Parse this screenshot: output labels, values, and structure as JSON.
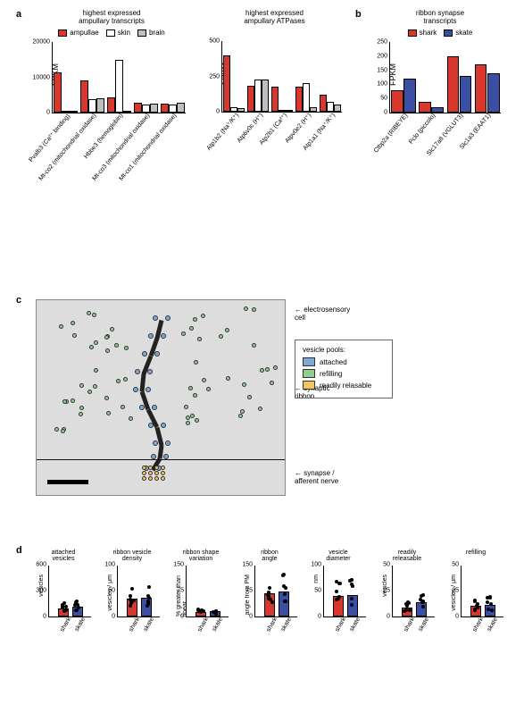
{
  "colors": {
    "shark": "#d9372c",
    "skate": "#3a4fa3",
    "skin": "#ffffff",
    "brain": "#bfbfbf",
    "attached": "#7da7d9",
    "refilling": "#8fcf8f",
    "readily": "#f2c65e",
    "bar_border": "#000000"
  },
  "panelA": {
    "label": "a",
    "chart1": {
      "title": "highest expressed\nampullary transcripts",
      "ylab": "FPKM",
      "ymax": 20000,
      "ytick": 10000,
      "legend": [
        {
          "label": "ampullae",
          "color": "#d9372c"
        },
        {
          "label": "skin",
          "color": "#ffffff"
        },
        {
          "label": "brain",
          "color": "#bfbfbf"
        }
      ],
      "x": [
        "Pvalb3 (Ca²⁺ binding)",
        "Mt-co2 (mitochondrial oxidase)",
        "Hbbe3 (hemoglobin)",
        "Mt-co3 (mitochondrial oxidase)",
        "Mt-co1 (mitochondrial oxidase)"
      ],
      "series": {
        "ampullae": [
          11500,
          9000,
          4200,
          2800,
          2600
        ],
        "skin": [
          200,
          3800,
          15000,
          2300,
          2400
        ],
        "brain": [
          300,
          4100,
          600,
          2500,
          2700
        ]
      }
    },
    "chart2": {
      "title": "highest expressed\nampullary ATPases",
      "ylab": "FPKM",
      "ymax": 500,
      "ytick": 250,
      "x": [
        "Atp1b2 (Na⁺/K⁺)",
        "Atp6v0c (H⁺)",
        "Atp2b1 (Ca²⁺)",
        "Atpv0e2 (H⁺)",
        "Atp1a1 (Na⁺/K⁺)"
      ],
      "series": {
        "ampullae": [
          400,
          185,
          175,
          180,
          120
        ],
        "skin": [
          30,
          225,
          15,
          200,
          70
        ],
        "brain": [
          25,
          230,
          5,
          30,
          50
        ]
      }
    }
  },
  "panelB": {
    "label": "b",
    "title": "ribbon synapse\ntranscripts",
    "ylab": "FPKM",
    "ymax": 250,
    "ytick": 50,
    "legend": [
      {
        "label": "shark",
        "color": "#d9372c"
      },
      {
        "label": "skate",
        "color": "#3a4fa3"
      }
    ],
    "x": [
      "Ctbp2a (RIBEYE)",
      "Pclo (piccolo)",
      "Slc17a8 (VGLUT3)",
      "Slc1a3 (EAAT1)"
    ],
    "series": {
      "shark": [
        80,
        38,
        200,
        170
      ],
      "skate": [
        120,
        18,
        130,
        140
      ]
    }
  },
  "panelC": {
    "label": "c",
    "labels": {
      "cell": "electrosensory\ncell",
      "ribbon": "synaptic\nribbon",
      "synapse": "synapse /\nafferent nerve"
    },
    "vpools": {
      "title": "vesicle pools:",
      "items": [
        {
          "label": "attached",
          "color": "#7da7d9"
        },
        {
          "label": "refilling",
          "color": "#8fcf8f"
        },
        {
          "label": "readily relasable",
          "color": "#f2c65e"
        }
      ]
    }
  },
  "panelD": {
    "label": "d",
    "charts": [
      {
        "title": "attached\nvesicles",
        "ylab": "vesicles",
        "ymax": 600,
        "shark": 95,
        "skate": 110
      },
      {
        "title": "ribbon vesicle\ndensity",
        "ylab": "vesicles / μm",
        "ymax": 100,
        "shark": 34,
        "skate": 37
      },
      {
        "title": "ribbon shape\nvariation",
        "ylab": "% greater than linear",
        "ymax": 150,
        "shark": 13,
        "skate": 15
      },
      {
        "title": "ribbon\nangle",
        "ylab": "angle from PM",
        "ymax": 150,
        "shark": 67,
        "skate": 73
      },
      {
        "title": "vesicle\ndiameter",
        "ylab": "nm",
        "ymax": 100,
        "shark": 40,
        "skate": 42
      },
      {
        "title": "readily\nreleasable",
        "ylab": "vesicles",
        "ymax": 50,
        "shark": 9,
        "skate": 14
      },
      {
        "title": "refilling",
        "ylab": "vesicles / μm",
        "ymax": 50,
        "shark": 10,
        "skate": 11
      }
    ],
    "xlabels": [
      "shark",
      "skate"
    ]
  }
}
